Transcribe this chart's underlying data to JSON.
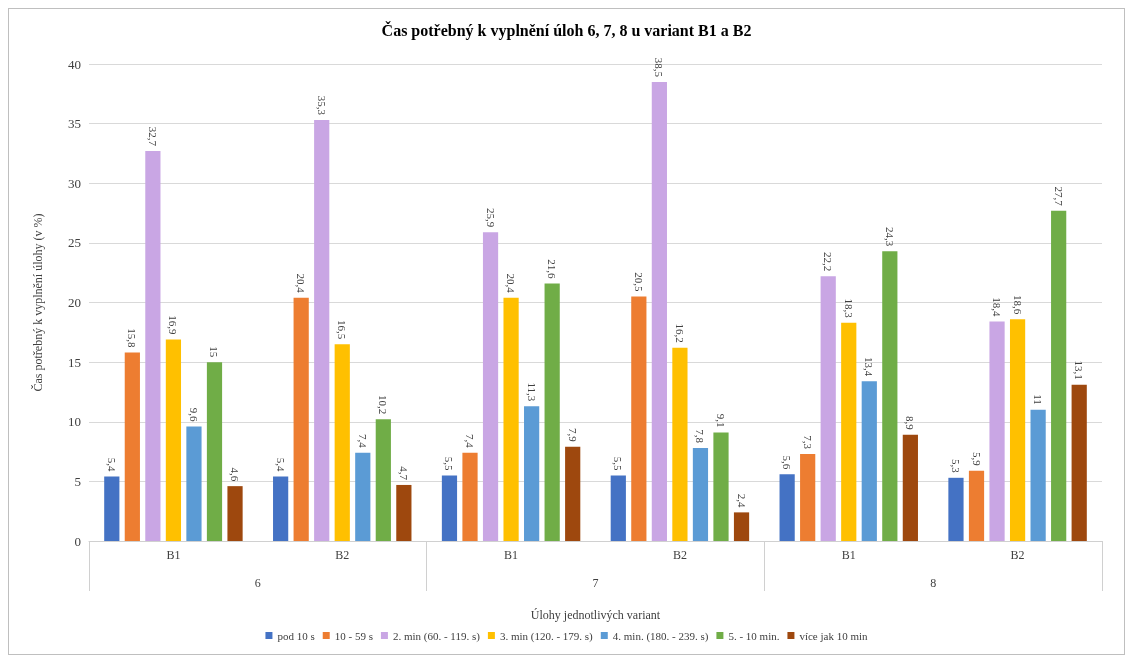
{
  "chart_data": {
    "type": "bar",
    "title": "Čas potřebný k vyplnění úloh 6, 7, 8 u variant B1 a B2",
    "xlabel": "Úlohy jednotlivých variant",
    "ylabel": "Čas potřebný k vyplnění úlohy (v %)",
    "categories": [
      "B1",
      "B2",
      "B1",
      "B2",
      "B1",
      "B2"
    ],
    "annotations": [
      "6",
      "7",
      "8"
    ],
    "ylim": [
      0,
      40
    ],
    "yticks": [
      0,
      5,
      10,
      15,
      20,
      25,
      30,
      35,
      40
    ],
    "grid": "y",
    "legend": "bottom",
    "series": [
      {
        "name": "pod 10 s",
        "color": "#4472c4",
        "values": [
          5.4,
          5.4,
          5.5,
          5.5,
          5.6,
          5.3
        ],
        "value_labels": [
          "5,4",
          "5,4",
          "5,5",
          "5,5",
          "5,6",
          "5,3"
        ]
      },
      {
        "name": "10 - 59 s",
        "color": "#ed7d31",
        "values": [
          15.8,
          20.4,
          7.4,
          20.5,
          7.3,
          5.9
        ],
        "value_labels": [
          "15,8",
          "20,4",
          "7,4",
          "20,5",
          "7,3",
          "5,9"
        ]
      },
      {
        "name": "2. min (60. - 119. s)",
        "color": "#c9a6e4",
        "values": [
          32.7,
          35.3,
          25.9,
          38.5,
          22.2,
          18.4
        ],
        "value_labels": [
          "32,7",
          "35,3",
          "25,9",
          "38,5",
          "22,2",
          "18,4"
        ]
      },
      {
        "name": "3. min (120. - 179. s)",
        "color": "#ffc000",
        "values": [
          16.9,
          16.5,
          20.4,
          16.2,
          18.3,
          18.6
        ],
        "value_labels": [
          "16,9",
          "16,5",
          "20,4",
          "16,2",
          "18,3",
          "18,6"
        ]
      },
      {
        "name": "4. min. (180. - 239. s)",
        "color": "#5b9bd5",
        "values": [
          9.6,
          7.4,
          11.3,
          7.8,
          13.4,
          11
        ],
        "value_labels": [
          "9,6",
          "7,4",
          "11,3",
          "7,8",
          "13,4",
          "11"
        ]
      },
      {
        "name": "5. - 10 min.",
        "color": "#70ad47",
        "values": [
          15,
          10.2,
          21.6,
          9.1,
          24.3,
          27.7
        ],
        "value_labels": [
          "15",
          "10,2",
          "21,6",
          "9,1",
          "24,3",
          "27,7"
        ]
      },
      {
        "name": "více jak 10 min",
        "color": "#9e480e",
        "values": [
          4.6,
          4.7,
          7.9,
          2.4,
          8.9,
          13.1
        ],
        "value_labels": [
          "4,6",
          "4,7",
          "7,9",
          "2,4",
          "8,9",
          "13,1"
        ]
      }
    ]
  }
}
